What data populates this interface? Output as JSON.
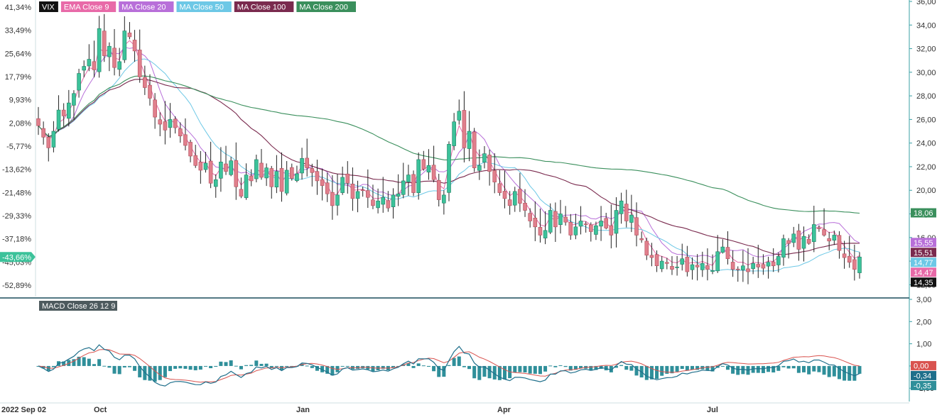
{
  "legend": {
    "symbol": "VIX",
    "ema9": "EMA Close 9",
    "ma20": "MA Close 20",
    "ma50": "MA Close 50",
    "ma100": "MA Close 100",
    "ma200": "MA Close 200"
  },
  "macd_label": "MACD Close 26 12 9",
  "colors": {
    "up": "#3cc29a",
    "down": "#e07f8c",
    "wick": "#222222",
    "ema9": "#e86aa8",
    "ma20": "#b86fd9",
    "ma50": "#6dc8e6",
    "ma100": "#7a2a4e",
    "ma200": "#3a8f5c",
    "macd_line": "#1f6f8b",
    "signal_line": "#d9534f",
    "histogram": "#2f8f9a",
    "axis": "#3aa0a6"
  },
  "right_axis_ticks": [
    "36,00",
    "34,00",
    "32,00",
    "30,00",
    "28,00",
    "26,00",
    "24,00",
    "22,00",
    "20,00",
    "18,00",
    "16,00",
    "14,00",
    "12,00"
  ],
  "left_axis_ticks": [
    "41,34%",
    "33,49%",
    "25,64%",
    "17,79%",
    "9,93%",
    "2,08%",
    "-5,77%",
    "-13,62%",
    "-21,48%",
    "-29,33%",
    "-37,18%",
    "-45,03%",
    "-52,89%"
  ],
  "current_pct_badge": "-43,66%",
  "price_badges": [
    {
      "label": "18,06",
      "value": 18.06,
      "color": "#3a8f5c"
    },
    {
      "label": "15,55",
      "value": 15.55,
      "color": "#b86fd9"
    },
    {
      "label": "15,51",
      "value": 15.51,
      "color": "#7a2a4e"
    },
    {
      "label": "14,77",
      "value": 14.77,
      "color": "#6dc8e6"
    },
    {
      "label": "14,47",
      "value": 14.47,
      "color": "#e86aa8"
    },
    {
      "label": "14,35",
      "value": 14.35,
      "color": "#111111"
    }
  ],
  "macd_axis_ticks": [
    "3,00",
    "2,00",
    "1,00",
    "0,00",
    "-1,00"
  ],
  "macd_badges": [
    {
      "label": "0,00",
      "value": 0.0,
      "color": "#d9534f"
    },
    {
      "label": "-0,34",
      "value": -0.34,
      "color": "#1f6f8b"
    },
    {
      "label": "-0,35",
      "value": -0.35,
      "color": "#2f8f9a"
    }
  ],
  "x_axis_labels": [
    "2022 Sep 02",
    "Oct",
    "Jan",
    "Apr",
    "Jul"
  ],
  "chart_data": {
    "type": "candlestick",
    "symbol": "VIX",
    "x_start": "2022 Sep 02",
    "y_range": [
      11.0,
      36.0
    ],
    "left_y_range_pct": [
      -52.89,
      41.34
    ],
    "last_close": 14.35,
    "closes": [
      25.47,
      24.5,
      23.6,
      25.0,
      26.8,
      26.3,
      27.4,
      28.2,
      29.9,
      30.5,
      31.1,
      30.2,
      33.7,
      31.4,
      32.2,
      30.4,
      30.9,
      33.5,
      33.0,
      31.8,
      29.6,
      28.7,
      27.8,
      26.2,
      25.6,
      25.1,
      26.0,
      25.3,
      24.6,
      23.8,
      22.9,
      22.1,
      21.7,
      22.3,
      20.6,
      20.9,
      22.4,
      21.6,
      22.5,
      20.3,
      19.5,
      21.3,
      20.8,
      22.6,
      21.1,
      21.9,
      20.3,
      21.6,
      19.9,
      21.7,
      21.0,
      21.4,
      22.7,
      21.9,
      21.5,
      20.8,
      20.4,
      19.7,
      18.7,
      19.6,
      21.1,
      20.6,
      19.3,
      19.9,
      20.0,
      19.4,
      18.7,
      19.1,
      19.4,
      18.5,
      19.6,
      19.7,
      20.8,
      21.3,
      19.8,
      22.6,
      21.8,
      22.1,
      20.9,
      19.2,
      19.6,
      23.9,
      25.8,
      26.7,
      23.6,
      25.0,
      21.9,
      22.1,
      23.1,
      21.6,
      20.7,
      19.8,
      19.3,
      18.7,
      19.9,
      18.9,
      18.3,
      17.4,
      16.9,
      16.2,
      16.6,
      18.3,
      16.9,
      18.0,
      17.3,
      16.2,
      16.9,
      17.4,
      17.1,
      16.5,
      17.0,
      17.4,
      16.8,
      16.2,
      18.3,
      19.1,
      17.4,
      17.9,
      16.2,
      15.8,
      14.5,
      14.3,
      13.6,
      14.0,
      13.8,
      13.3,
      13.5,
      14.2,
      13.1,
      13.7,
      13.5,
      13.8,
      13.3,
      13.2,
      14.8,
      15.2,
      14.2,
      13.3,
      13.3,
      13.6,
      13.1,
      13.8,
      13.5,
      13.4,
      13.9,
      13.6,
      14.4,
      15.9,
      15.5,
      16.3,
      15.0,
      16.1,
      15.5,
      17.1,
      16.8,
      16.2,
      15.7,
      16.2,
      14.9,
      14.3,
      13.9,
      13.3,
      14.35
    ],
    "series": [
      {
        "name": "EMA Close 9",
        "last": 14.47
      },
      {
        "name": "MA Close 20",
        "last": 15.55
      },
      {
        "name": "MA Close 50",
        "last": 14.77
      },
      {
        "name": "MA Close 100",
        "last": 15.51
      },
      {
        "name": "MA Close 200",
        "last": 18.06
      }
    ],
    "macd": {
      "name": "MACD Close 26 12 9",
      "y_range": [
        -1.6,
        3.0
      ],
      "last_macd": -0.34,
      "last_signal": 0.0,
      "last_histogram": -0.35
    }
  }
}
